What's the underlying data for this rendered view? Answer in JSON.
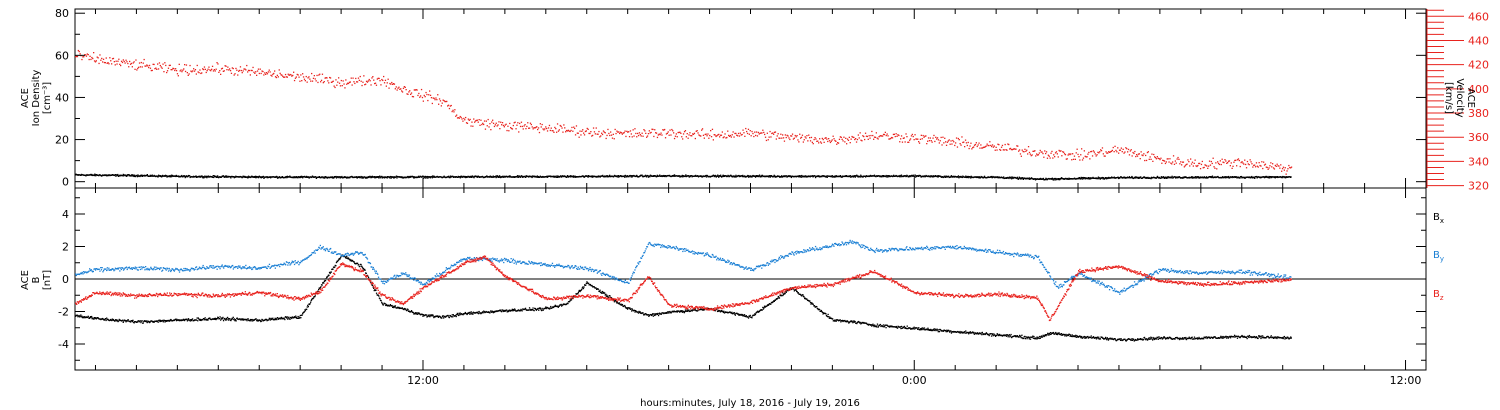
{
  "figure": {
    "xlabel": "hours:minutes, July 18, 2016 - July 19, 2016",
    "x_ticks": [
      "12:00",
      "0:00",
      "12:00"
    ],
    "x_range_hours": [
      3.5,
      36.5
    ],
    "colors": {
      "black": "#000000",
      "red": "#e8231e",
      "blue": "#1a7fd4"
    }
  },
  "chart_data": [
    {
      "type": "scatter",
      "panel": "top",
      "ylabel_lines": [
        "ACE",
        "Ion Density",
        "[cm⁻³]"
      ],
      "ylim": [
        -3,
        82
      ],
      "y_ticks": [
        "0",
        "20",
        "40",
        "60",
        "80"
      ],
      "y2label_lines": [
        "ACE",
        "Velocity",
        "[km/s]"
      ],
      "y2lim": [
        318,
        466
      ],
      "y2_ticks": [
        "320",
        "340",
        "360",
        "380",
        "400",
        "420",
        "440",
        "460"
      ],
      "series": [
        {
          "id": "density",
          "axis": "left",
          "color": "#000000",
          "x": [
            3.5,
            5,
            6,
            8,
            10,
            12,
            14,
            16,
            18,
            20,
            22,
            24,
            25,
            26,
            27,
            28,
            29,
            30,
            31,
            32,
            33.2
          ],
          "y": [
            3.5,
            3.2,
            2.8,
            2.5,
            2.4,
            2.5,
            2.6,
            2.8,
            3.0,
            2.9,
            2.8,
            3.0,
            2.6,
            2.4,
            1.5,
            1.8,
            2.2,
            2.3,
            2.4,
            2.4,
            2.5
          ]
        },
        {
          "id": "velocity",
          "axis": "right",
          "color": "#e8231e",
          "x": [
            3.5,
            4,
            5,
            6,
            7,
            8,
            9,
            10,
            11,
            11.5,
            12,
            12.5,
            12.8,
            13,
            14,
            15,
            16,
            17,
            18,
            19,
            20,
            21,
            22,
            23,
            24,
            25,
            26,
            27,
            28,
            29,
            30,
            31,
            32,
            33.2
          ],
          "y": [
            428,
            425,
            420,
            416,
            417,
            414,
            410,
            406,
            408,
            400,
            395,
            390,
            380,
            374,
            370,
            368,
            365,
            363,
            364,
            362,
            364,
            360,
            358,
            362,
            360,
            356,
            352,
            348,
            345,
            350,
            342,
            338,
            340,
            334
          ]
        }
      ]
    },
    {
      "type": "scatter",
      "panel": "bottom",
      "ylabel_lines": [
        "ACE",
        "B",
        "[nT]"
      ],
      "ylim": [
        -5.6,
        5.6
      ],
      "y_ticks": [
        "-4",
        "-2",
        "0",
        "2",
        "4"
      ],
      "series": [
        {
          "name": "Bx",
          "color": "#000000",
          "x": [
            3.5,
            4,
            5,
            6,
            7,
            8,
            9,
            10,
            10.5,
            11,
            11.5,
            12,
            12.5,
            13,
            14,
            15,
            15.5,
            16,
            17,
            17.5,
            18,
            19,
            20,
            21,
            22,
            22.5,
            23,
            24,
            25,
            26,
            27,
            27.3,
            28,
            29,
            30,
            31,
            32,
            33.2
          ],
          "y": [
            -2.2,
            -2.4,
            -2.6,
            -2.5,
            -2.4,
            -2.5,
            -2.3,
            1.5,
            0.8,
            -1.5,
            -1.8,
            -2.2,
            -2.3,
            -2.1,
            -1.9,
            -1.8,
            -1.5,
            -0.2,
            -1.8,
            -2.2,
            -2.0,
            -1.8,
            -2.3,
            -0.5,
            -2.5,
            -2.6,
            -2.8,
            -3.0,
            -3.2,
            -3.4,
            -3.6,
            -3.3,
            -3.5,
            -3.7,
            -3.6,
            -3.6,
            -3.5,
            -3.6
          ]
        },
        {
          "name": "By",
          "color": "#1a7fd4",
          "x": [
            3.5,
            4,
            5,
            6,
            7,
            8,
            9,
            9.5,
            10,
            10.5,
            11,
            11.5,
            12,
            13,
            14,
            15,
            16,
            17,
            17.5,
            18,
            19,
            20,
            21,
            22,
            22.5,
            23,
            24,
            25,
            26,
            27,
            27.5,
            28,
            29,
            30,
            31,
            32,
            33.2
          ],
          "y": [
            0.3,
            0.6,
            0.7,
            0.6,
            0.8,
            0.7,
            1.1,
            2.0,
            1.5,
            1.7,
            -0.2,
            0.4,
            -0.3,
            1.3,
            1.2,
            0.9,
            0.7,
            -0.2,
            2.2,
            2.0,
            1.5,
            0.6,
            1.6,
            2.1,
            2.3,
            1.8,
            1.9,
            2.0,
            1.7,
            1.4,
            -0.5,
            0.4,
            -0.8,
            0.6,
            0.4,
            0.5,
            0.1
          ]
        },
        {
          "name": "Bz",
          "color": "#e8231e",
          "x": [
            3.5,
            4,
            5,
            6,
            7,
            8,
            9,
            9.5,
            10,
            10.5,
            11,
            11.5,
            12,
            13,
            13.5,
            14,
            15,
            16,
            17,
            17.5,
            18,
            19,
            20,
            21,
            22,
            23,
            24,
            25,
            26,
            27,
            27.3,
            28,
            29,
            30,
            31,
            32,
            33.2
          ],
          "y": [
            -1.5,
            -0.8,
            -1.0,
            -0.9,
            -1.0,
            -0.8,
            -1.2,
            -0.7,
            1.0,
            0.5,
            -1.0,
            -1.5,
            -0.5,
            1.0,
            1.4,
            0.2,
            -1.2,
            -1.0,
            -1.3,
            0.2,
            -1.6,
            -1.8,
            -1.4,
            -0.5,
            -0.3,
            0.5,
            -0.8,
            -1.0,
            -0.9,
            -1.1,
            -2.5,
            0.5,
            0.8,
            -0.1,
            -0.3,
            -0.2,
            0.0
          ]
        }
      ],
      "legend": {
        "placement": "right",
        "entries": [
          "Bx",
          "By",
          "Bz"
        ]
      }
    }
  ]
}
